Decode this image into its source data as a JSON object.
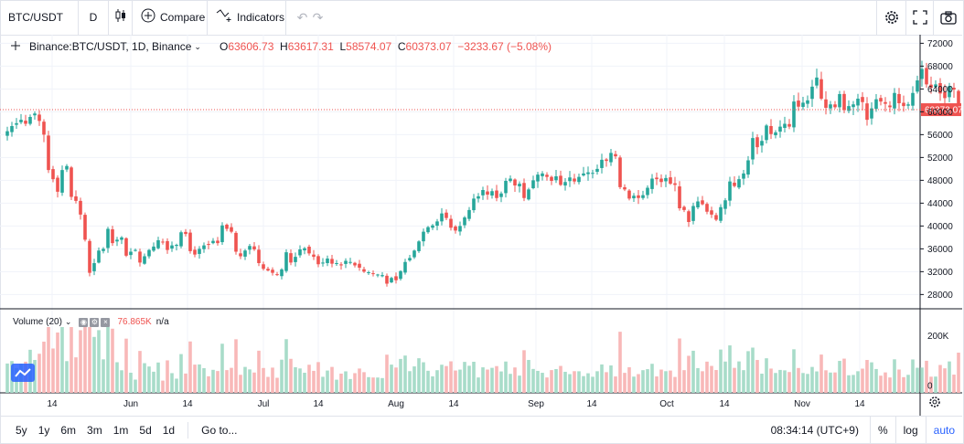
{
  "toolbar": {
    "symbol": "BTC/USDT",
    "interval": "D",
    "compare_label": "Compare",
    "indicators_label": "Indicators"
  },
  "legend": {
    "symbol_text": "Binance:BTC/USDT, 1D, Binance",
    "open_key": "O",
    "open": "63606.73",
    "high_key": "H",
    "high": "63617.31",
    "low_key": "L",
    "low": "58574.07",
    "close_key": "C",
    "close": "60373.07",
    "change": "−3233.67 (−5.08%)"
  },
  "volume_legend": {
    "label": "Volume (20)",
    "value": "76.865K",
    "ma_value": "n/a"
  },
  "bottom": {
    "ranges": [
      "5y",
      "1y",
      "6m",
      "3m",
      "1m",
      "5d",
      "1d"
    ],
    "goto": "Go to...",
    "clock": "08:34:14 (UTC+9)",
    "percent": "%",
    "log": "log",
    "auto": "auto"
  },
  "colors": {
    "up": "#26a69a",
    "down": "#ef5350",
    "up_volume": "#a8dcc9",
    "down_volume": "#f8b8b8",
    "text": "#131722"
  },
  "chart_data": {
    "type": "candlestick",
    "price_axis": {
      "ticks": [
        28000,
        32000,
        36000,
        40000,
        44000,
        48000,
        52000,
        56000,
        60000,
        64000,
        68000,
        72000
      ],
      "ylim": [
        25500,
        73500
      ]
    },
    "last_price_label": "60373.07",
    "volume_axis": {
      "ticks": [
        0,
        200000
      ],
      "tick_labels": [
        "0",
        "200K"
      ]
    },
    "time_axis_labels": [
      "14",
      "Jun",
      "14",
      "Jul",
      "14",
      "Aug",
      "14",
      "Sep",
      "14",
      "Oct",
      "14",
      "Nov",
      "14"
    ],
    "daily_closes": [
      56600,
      57500,
      58000,
      58600,
      57900,
      59100,
      59700,
      58400,
      56000,
      49800,
      48200,
      46000,
      49800,
      50500,
      45100,
      44400,
      42000,
      37600,
      31800,
      33500,
      35700,
      36000,
      39500,
      37000,
      37600,
      38000,
      34800,
      35500,
      35800,
      33600,
      34700,
      35800,
      36400,
      37500,
      37200,
      35800,
      36600,
      36700,
      38900,
      38600,
      35600,
      35000,
      36000,
      36600,
      36800,
      37400,
      37000,
      40100,
      39500,
      39000,
      35500,
      34700,
      35700,
      36500,
      35900,
      33500,
      32500,
      32200,
      31800,
      31500,
      32400,
      35400,
      33600,
      34600,
      35900,
      36100,
      35200,
      34600,
      33300,
      33600,
      34300,
      33400,
      33500,
      33100,
      33900,
      33700,
      33100,
      32700,
      32000,
      31900,
      31700,
      31500,
      31400,
      29900,
      30900,
      30500,
      32100,
      33700,
      34400,
      35700,
      37300,
      39000,
      39800,
      40100,
      40800,
      42200,
      41400,
      39700,
      39200,
      40000,
      41500,
      42800,
      44800,
      45200,
      46300,
      45500,
      46100,
      44900,
      45700,
      47900,
      48300,
      47100,
      47400,
      44900,
      46400,
      48000,
      49000,
      49200,
      48600,
      47900,
      48700,
      47200,
      47700,
      48500,
      47800,
      48600,
      49200,
      49400,
      49300,
      50000,
      51600,
      51400,
      52800,
      52200,
      46800,
      46400,
      44800,
      45300,
      44900,
      45400,
      46700,
      48300,
      48200,
      47700,
      48400,
      47400,
      47200,
      43100,
      42800,
      40700,
      43500,
      44300,
      43800,
      42500,
      42000,
      41100,
      43300,
      44500,
      47800,
      47000,
      48200,
      49200,
      51500,
      55400,
      53800,
      54900,
      57600,
      56100,
      56400,
      57400,
      57900,
      57400,
      61800,
      60900,
      61600,
      62000,
      64400,
      66000,
      62300,
      60700,
      61300,
      60800,
      63100,
      60300,
      61000,
      61300,
      62300,
      61700,
      58600,
      60600,
      62200,
      61800,
      61400,
      60800,
      63300,
      61500,
      61000,
      61300,
      63300,
      65500,
      67500,
      64800,
      64200,
      64800,
      63200,
      62400,
      64500,
      63900,
      60373
    ]
  }
}
